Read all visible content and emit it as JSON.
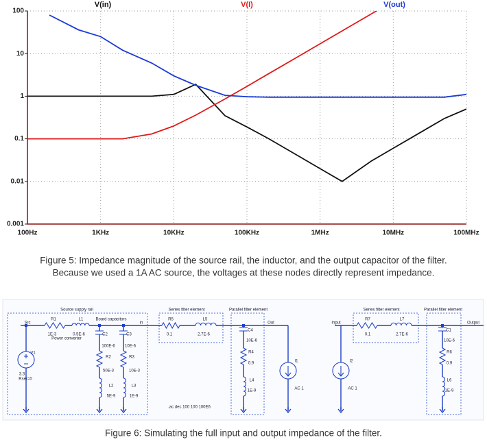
{
  "chart_data": {
    "type": "line",
    "xscale": "log",
    "yscale": "log",
    "grid": true,
    "x": [
      100,
      200,
      500,
      1000,
      2000,
      5000,
      10000,
      20000,
      50000,
      100000,
      200000,
      500000,
      1000000,
      2000000,
      5000000,
      10000000,
      20000000,
      50000000,
      100000000
    ],
    "series": [
      {
        "name": "V(in)",
        "color": "#111111",
        "values": [
          1,
          1,
          1,
          1,
          1,
          1,
          1.1,
          1.9,
          0.35,
          0.19,
          0.1,
          0.04,
          0.02,
          0.01,
          0.03,
          0.06,
          0.12,
          0.3,
          0.5
        ]
      },
      {
        "name": "V(I)",
        "color": "#e01818",
        "values": [
          0.1,
          0.1,
          0.1,
          0.1,
          0.1,
          0.13,
          0.2,
          0.36,
          0.86,
          1.7,
          3.4,
          8.5,
          17,
          34,
          85,
          170,
          null,
          null,
          null
        ]
      },
      {
        "name": "V(out)",
        "color": "#1a3ad8",
        "values": [
          null,
          80,
          36,
          25,
          12,
          6,
          3,
          1.8,
          1.05,
          0.97,
          0.95,
          0.95,
          0.95,
          0.95,
          0.95,
          0.95,
          0.95,
          0.95,
          1.1
        ]
      }
    ],
    "xlim": [
      100,
      100000000
    ],
    "ylim": [
      0.001,
      100
    ],
    "xticks": [
      {
        "value": 100,
        "label": "100Hz"
      },
      {
        "value": 1000,
        "label": "1KHz"
      },
      {
        "value": 10000,
        "label": "10KHz"
      },
      {
        "value": 100000,
        "label": "100KHz"
      },
      {
        "value": 1000000,
        "label": "1MHz"
      },
      {
        "value": 10000000,
        "label": "10MHz"
      },
      {
        "value": 100000000,
        "label": "100MHz"
      }
    ],
    "yticks": [
      0.001,
      0.01,
      0.1,
      1,
      10,
      100
    ]
  },
  "figure5_caption": [
    "Figure 5: Impedance magnitude of the source rail, the inductor, and the output capacitor of the filter.",
    "Because we used a 1A AC source, the voltages at these nodes directly represent impedance."
  ],
  "figure6_caption": "Figure 6: Simulating the full input and output impedance of the filter.",
  "schematic": {
    "labels": [
      "Source supply rail",
      "Src",
      "R1",
      "L1",
      "Board capacitors",
      "in",
      "1E-3",
      "0.5E-6",
      "C2",
      "C3",
      "Power converter",
      "100E-6",
      "10E-6",
      "V1",
      "R2",
      "R3",
      "50E-3",
      "10E-3",
      "3.3",
      "Rser=0",
      "L2",
      "L3",
      "5E-9",
      "1E-9",
      "Series filter element",
      "Parallel filter element",
      "R5",
      "L5",
      "Out",
      "0.1",
      "2.7E-6",
      "C4",
      "10E-6",
      "R4",
      "0.9",
      "I1",
      "L4",
      "1E-9",
      "AC 1",
      ".ac dec 100 100 100E6",
      "Series filter element",
      "Parallel filter element",
      "Input",
      "R7",
      "L7",
      "Output",
      "0.1",
      "2.7E-6",
      "C1",
      "10E-6",
      "R6",
      "0.9",
      "I2",
      "L6",
      "1E-9",
      "AC 1"
    ]
  }
}
